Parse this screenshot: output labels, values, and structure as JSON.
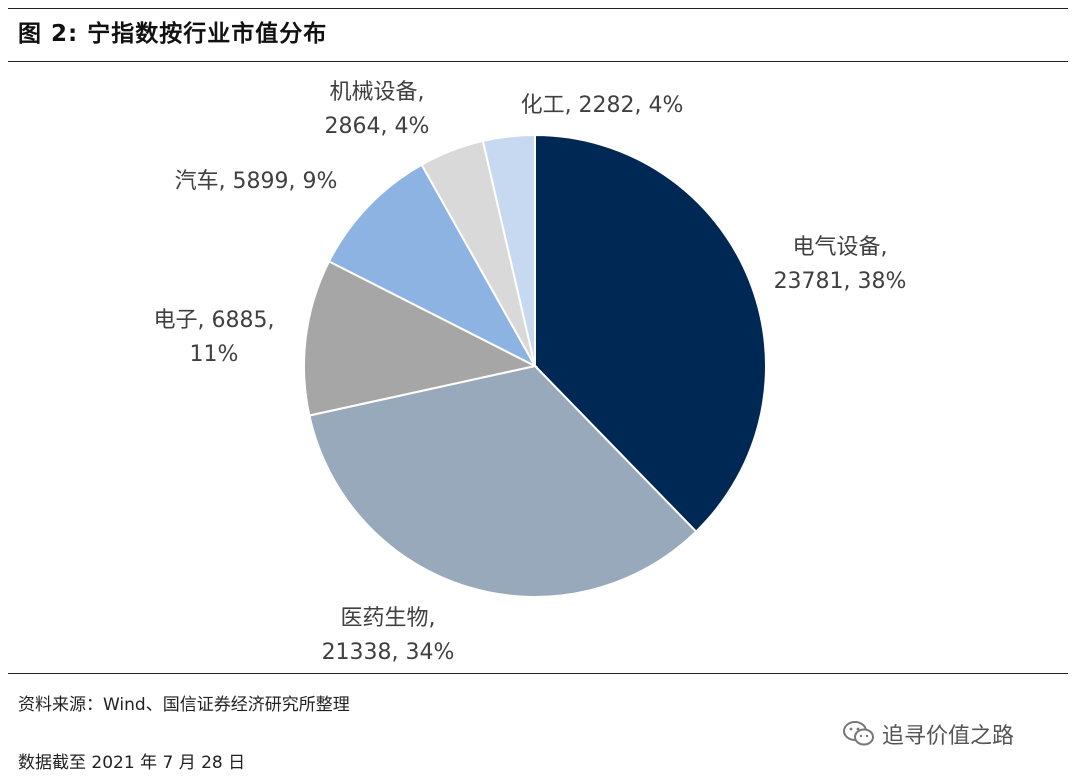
{
  "figure": {
    "title": "图 2:  宁指数按行业市值分布",
    "source": "资料来源：Wind、国信证券经济研究所整理",
    "date_note": "数据截至 2021 年 7 月 28 日",
    "watermark": "追寻价值之路"
  },
  "chart_data": {
    "type": "pie",
    "title": "图 2:  宁指数按行业市值分布",
    "slices": [
      {
        "category": "电气设备",
        "value": 23781,
        "percent": 38,
        "color": "#002855",
        "label_lines": [
          "电气设备,",
          "23781, 38%"
        ]
      },
      {
        "category": "医药生物",
        "value": 21338,
        "percent": 34,
        "color": "#97a9bb",
        "label_lines": [
          "医药生物,",
          "21338, 34%"
        ]
      },
      {
        "category": "电子",
        "value": 6885,
        "percent": 11,
        "color": "#a6a6a6",
        "label_lines": [
          "电子, 6885,",
          "11%"
        ]
      },
      {
        "category": "汽车",
        "value": 5899,
        "percent": 9,
        "color": "#8db3e2",
        "label_lines": [
          "汽车, 5899, 9%"
        ]
      },
      {
        "category": "机械设备",
        "value": 2864,
        "percent": 4,
        "color": "#d9d9d9",
        "label_lines": [
          "机械设备,",
          "2864, 4%"
        ]
      },
      {
        "category": "化工",
        "value": 2282,
        "percent": 4,
        "color": "#c6d9f1",
        "label_lines": [
          "化工, 2282, 4%"
        ]
      }
    ],
    "start_angle": "12 o'clock",
    "direction": "clockwise",
    "legend": "none",
    "data_labels": "outside"
  }
}
